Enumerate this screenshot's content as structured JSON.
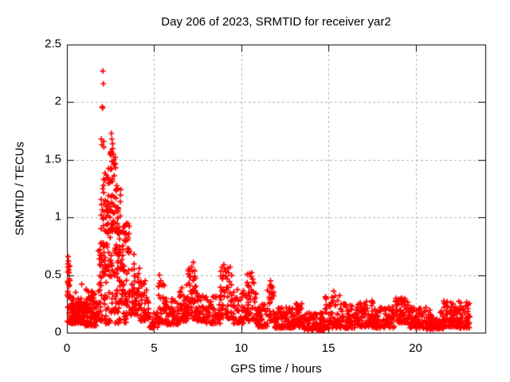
{
  "chart_data": {
    "type": "scatter",
    "title": "Day 206 of 2023, SRMTID for receiver yar2",
    "xlabel": "GPS time / hours",
    "ylabel": "SRMTID / TECUs",
    "xlim": [
      0,
      24
    ],
    "ylim": [
      0,
      2.5
    ],
    "xticks": {
      "values": [
        0,
        5,
        10,
        15,
        20
      ],
      "labels": [
        "0",
        "5",
        "10",
        "15",
        "20"
      ]
    },
    "yticks": {
      "values": [
        0,
        0.5,
        1,
        1.5,
        2,
        2.5
      ],
      "labels": [
        "0",
        "0.5",
        "1",
        "1.5",
        "2",
        "2.5"
      ]
    },
    "grid": {
      "show": true,
      "style": "dashed",
      "color": "#b4b4b4"
    },
    "frame_color": "#000000",
    "marker": {
      "shape": "plus",
      "color": "#ff0000",
      "size": 7,
      "stroke": 1.7
    },
    "legend": "none",
    "point_generation": {
      "seed": 42,
      "segments": [
        [
          0.02,
          0.2,
          0.08,
          0.68,
          30,
          1.2
        ],
        [
          0.2,
          1.0,
          0.08,
          0.3,
          120,
          1.8
        ],
        [
          1.0,
          1.8,
          0.06,
          0.38,
          100,
          2.0
        ],
        [
          1.8,
          2.0,
          0.1,
          0.8,
          30,
          1.5
        ],
        [
          1.95,
          2.2,
          0.3,
          1.45,
          40,
          1.0
        ],
        [
          2.2,
          2.5,
          0.4,
          1.45,
          40,
          1.0
        ],
        [
          2.5,
          2.8,
          0.45,
          1.6,
          50,
          1.0
        ],
        [
          2.8,
          3.1,
          0.35,
          1.3,
          50,
          1.2
        ],
        [
          1.95,
          3.6,
          0.08,
          0.35,
          70,
          1.5
        ],
        [
          3.1,
          3.6,
          0.25,
          0.95,
          50,
          1.3
        ],
        [
          3.6,
          4.2,
          0.15,
          0.6,
          50,
          1.4
        ],
        [
          4.2,
          4.7,
          0.1,
          0.45,
          40,
          1.6
        ],
        [
          4.7,
          5.2,
          0.04,
          0.18,
          28,
          1.5
        ],
        [
          5.2,
          5.6,
          0.08,
          0.45,
          32,
          1.8
        ],
        [
          5.6,
          6.4,
          0.07,
          0.3,
          60,
          2.0
        ],
        [
          6.4,
          6.9,
          0.1,
          0.42,
          45,
          1.8
        ],
        [
          6.9,
          7.4,
          0.12,
          0.58,
          50,
          1.6
        ],
        [
          7.4,
          8.0,
          0.1,
          0.35,
          50,
          1.8
        ],
        [
          8.0,
          8.8,
          0.08,
          0.32,
          60,
          2.0
        ],
        [
          8.8,
          9.5,
          0.12,
          0.58,
          55,
          1.4
        ],
        [
          9.5,
          10.3,
          0.08,
          0.38,
          55,
          1.8
        ],
        [
          10.3,
          10.85,
          0.1,
          0.52,
          45,
          1.5
        ],
        [
          10.85,
          11.5,
          0.05,
          0.25,
          50,
          1.8
        ],
        [
          11.5,
          11.9,
          0.1,
          0.45,
          28,
          1.4
        ],
        [
          11.9,
          13.0,
          0.04,
          0.22,
          90,
          1.8
        ],
        [
          13.0,
          13.6,
          0.05,
          0.26,
          50,
          1.8
        ],
        [
          13.6,
          14.8,
          0.02,
          0.18,
          95,
          1.8
        ],
        [
          14.8,
          15.7,
          0.04,
          0.36,
          65,
          2.0
        ],
        [
          15.7,
          16.6,
          0.04,
          0.26,
          65,
          1.8
        ],
        [
          16.6,
          17.6,
          0.05,
          0.28,
          75,
          1.8
        ],
        [
          17.6,
          18.8,
          0.04,
          0.24,
          85,
          1.8
        ],
        [
          18.8,
          19.6,
          0.08,
          0.3,
          60,
          1.5
        ],
        [
          19.6,
          20.6,
          0.04,
          0.22,
          75,
          1.8
        ],
        [
          20.6,
          21.6,
          0.03,
          0.2,
          75,
          1.8
        ],
        [
          21.6,
          22.4,
          0.05,
          0.28,
          60,
          1.7
        ],
        [
          22.4,
          23.1,
          0.04,
          0.28,
          55,
          1.5
        ]
      ],
      "outliers": [
        [
          2.06,
          2.27
        ],
        [
          2.09,
          2.16
        ],
        [
          2.03,
          1.96
        ],
        [
          2.05,
          1.95
        ],
        [
          1.97,
          1.68
        ],
        [
          2.0,
          1.63
        ],
        [
          2.1,
          1.66
        ],
        [
          2.12,
          1.61
        ],
        [
          2.55,
          1.73
        ],
        [
          2.58,
          1.68
        ],
        [
          2.62,
          1.64
        ],
        [
          2.52,
          1.57
        ],
        [
          2.66,
          1.55
        ],
        [
          2.7,
          1.5
        ],
        [
          2.74,
          1.47
        ],
        [
          0.07,
          0.66
        ],
        [
          0.09,
          0.62
        ],
        [
          0.1,
          0.57
        ],
        [
          0.12,
          0.52
        ],
        [
          0.5,
          0.35
        ],
        [
          0.85,
          0.42
        ],
        [
          3.3,
          0.92
        ],
        [
          3.2,
          0.88
        ],
        [
          3.85,
          0.68
        ],
        [
          5.3,
          0.5
        ],
        [
          5.38,
          0.45
        ],
        [
          7.15,
          0.57
        ],
        [
          7.25,
          0.61
        ],
        [
          7.2,
          0.53
        ],
        [
          9.0,
          0.59
        ],
        [
          9.05,
          0.55
        ],
        [
          10.6,
          0.52
        ],
        [
          11.68,
          0.45
        ],
        [
          11.7,
          0.4
        ],
        [
          15.3,
          0.36
        ],
        [
          19.2,
          0.3
        ]
      ]
    }
  }
}
